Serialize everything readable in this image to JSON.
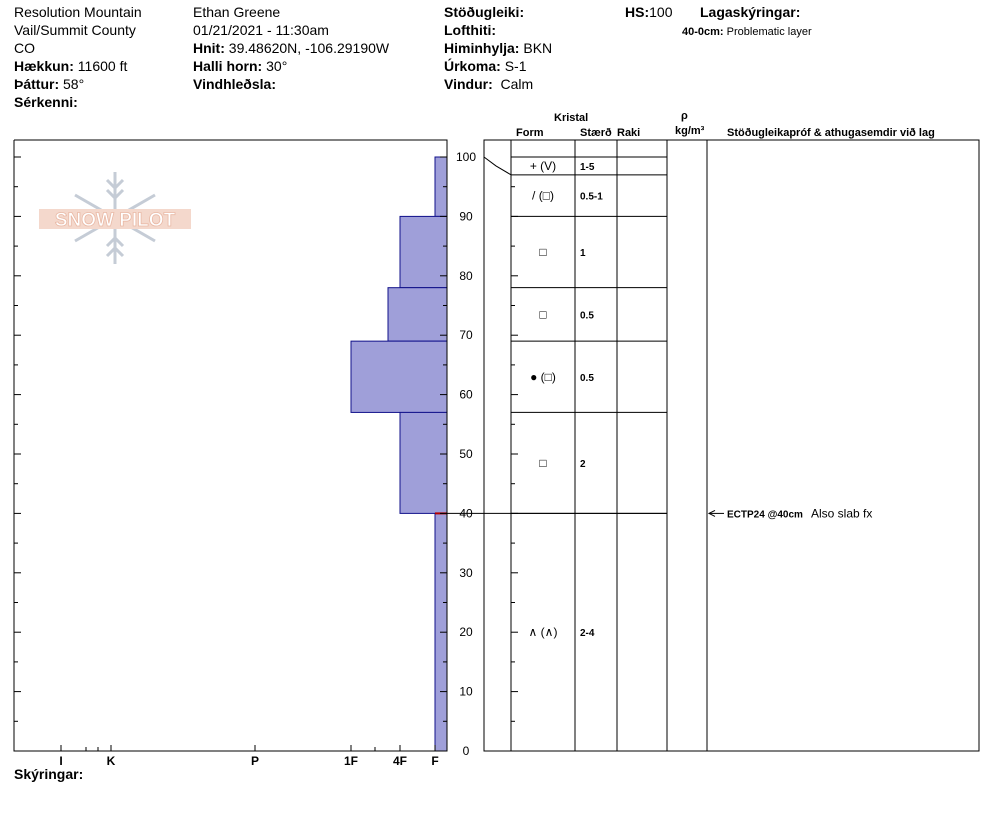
{
  "header": {
    "location_line1": "Resolution Mountain",
    "location_line2": "Vail/Summit County",
    "location_line3": "CO",
    "elevation_label": "Hækkun:",
    "elevation_value": "11600 ft",
    "aspect_label": "Þáttur:",
    "aspect_value": "58°",
    "features_label": "Sérkenni:",
    "observer": "Ethan Greene",
    "datetime": "01/21/2021 - 11:30am",
    "coords_label": "Hnit:",
    "coords_value": "39.48620N, -106.29190W",
    "slope_label": "Halli horn:",
    "slope_value": "30°",
    "wind_loading_label": "Vindhleðsla:",
    "stability_label": "Stöðugleiki:",
    "air_temp_label": "Lofthiti:",
    "sky_label": "Himinhylja:",
    "sky_value": "BKN",
    "precip_label": "Úrkoma:",
    "precip_value": "S-1",
    "wind_label": "Vindur:",
    "wind_value": "Calm",
    "hs_label": "HS:",
    "hs_value": "100",
    "layer_notes_label": "Lagaskýringar:",
    "layer_note_depth": "40-0cm:",
    "layer_note_text": "Problematic layer"
  },
  "columns": {
    "crystal": "Kristal",
    "form": "Form",
    "size": "Stærð",
    "moisture": "Raki",
    "rho": "ρ",
    "density_unit": "kg/m³",
    "tests": "Stöðugleikapróf & athugasemdir við lag"
  },
  "footer": {
    "notes_label": "Skýringar:"
  },
  "logo_text": "SNOW PILOT",
  "chart_data": {
    "type": "snow-profile",
    "y_axis": {
      "min": 0,
      "max": 100,
      "ticks": [
        0,
        10,
        20,
        30,
        40,
        50,
        60,
        70,
        80,
        90,
        100
      ]
    },
    "hardness_ticks": [
      "I",
      "K",
      "P",
      "1F",
      "4F",
      "F"
    ],
    "hardness_scale": {
      "F": 1,
      "4F": 2,
      "1F": 3,
      "P": 4,
      "K": 5,
      "I": 6
    },
    "hardness_layers": [
      {
        "top": 100,
        "bottom": 90,
        "hardness": 1
      },
      {
        "top": 90,
        "bottom": 78,
        "hardness": 2
      },
      {
        "top": 78,
        "bottom": 69,
        "hardness": 2.5
      },
      {
        "top": 69,
        "bottom": 57,
        "hardness": 3
      },
      {
        "top": 57,
        "bottom": 40,
        "hardness": 2
      },
      {
        "top": 40,
        "bottom": 0,
        "hardness": 1
      }
    ],
    "problem_layer_depth": 40,
    "layers": [
      {
        "top": 100,
        "bottom": 97,
        "form": "+ (V)",
        "size": "1-5"
      },
      {
        "top": 97,
        "bottom": 90,
        "form": "/ (□)",
        "size": "0.5-1"
      },
      {
        "top": 90,
        "bottom": 78,
        "form": "□",
        "size": "1"
      },
      {
        "top": 78,
        "bottom": 69,
        "form": "□",
        "size": "0.5"
      },
      {
        "top": 69,
        "bottom": 57,
        "form": "● (□)",
        "size": "0.5"
      },
      {
        "top": 57,
        "bottom": 40,
        "form": "□",
        "size": "2"
      },
      {
        "top": 40,
        "bottom": 0,
        "form": "∧ (∧)",
        "size": "2-4"
      }
    ],
    "tests": [
      {
        "depth": 40,
        "result": "ECTP24 @40cm",
        "comment": "Also slab fx"
      }
    ]
  }
}
